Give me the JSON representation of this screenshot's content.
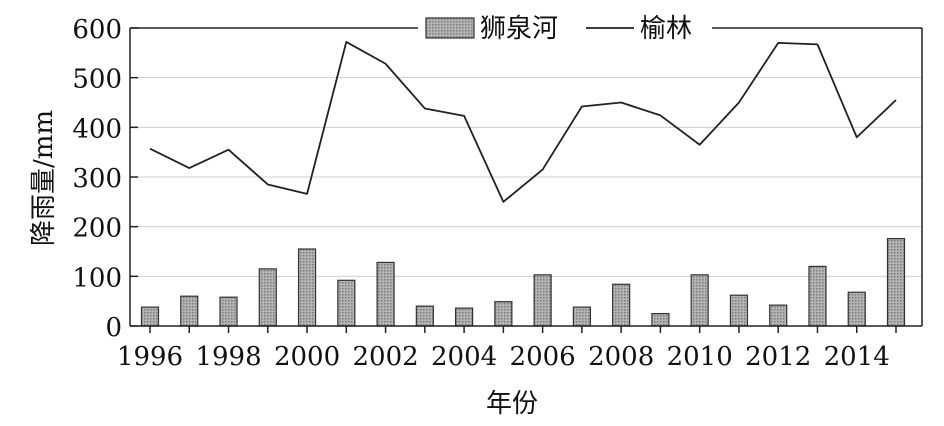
{
  "chart_data": {
    "type": "bar+line",
    "xlabel": "年份",
    "ylabel": "降雨量/mm",
    "ylim": [
      0,
      600
    ],
    "yticks": [
      0,
      100,
      200,
      300,
      400,
      500,
      600
    ],
    "xtick_labels": [
      "1996",
      "1998",
      "2000",
      "2002",
      "2004",
      "2006",
      "2008",
      "2010",
      "2012",
      "2014"
    ],
    "x": [
      1996,
      1997,
      1998,
      1999,
      2000,
      2001,
      2002,
      2003,
      2004,
      2005,
      2006,
      2007,
      2008,
      2009,
      2010,
      2011,
      2012,
      2013,
      2014,
      2015
    ],
    "grid": "horizontal",
    "legend_position": "top-center",
    "series": [
      {
        "name": "狮泉河",
        "type": "bar",
        "values": [
          38,
          60,
          58,
          115,
          155,
          92,
          128,
          40,
          36,
          49,
          103,
          38,
          84,
          25,
          103,
          62,
          42,
          120,
          68,
          176
        ]
      },
      {
        "name": "榆林",
        "type": "line",
        "values": [
          357,
          318,
          355,
          285,
          266,
          572,
          528,
          438,
          423,
          250,
          315,
          442,
          450,
          424,
          365,
          450,
          570,
          567,
          380,
          455
        ]
      }
    ],
    "colors": {
      "bar_fill": "#a8a8a8",
      "bar_stroke": "#333333",
      "line": "#222222",
      "grid": "#cfcfcf"
    }
  }
}
